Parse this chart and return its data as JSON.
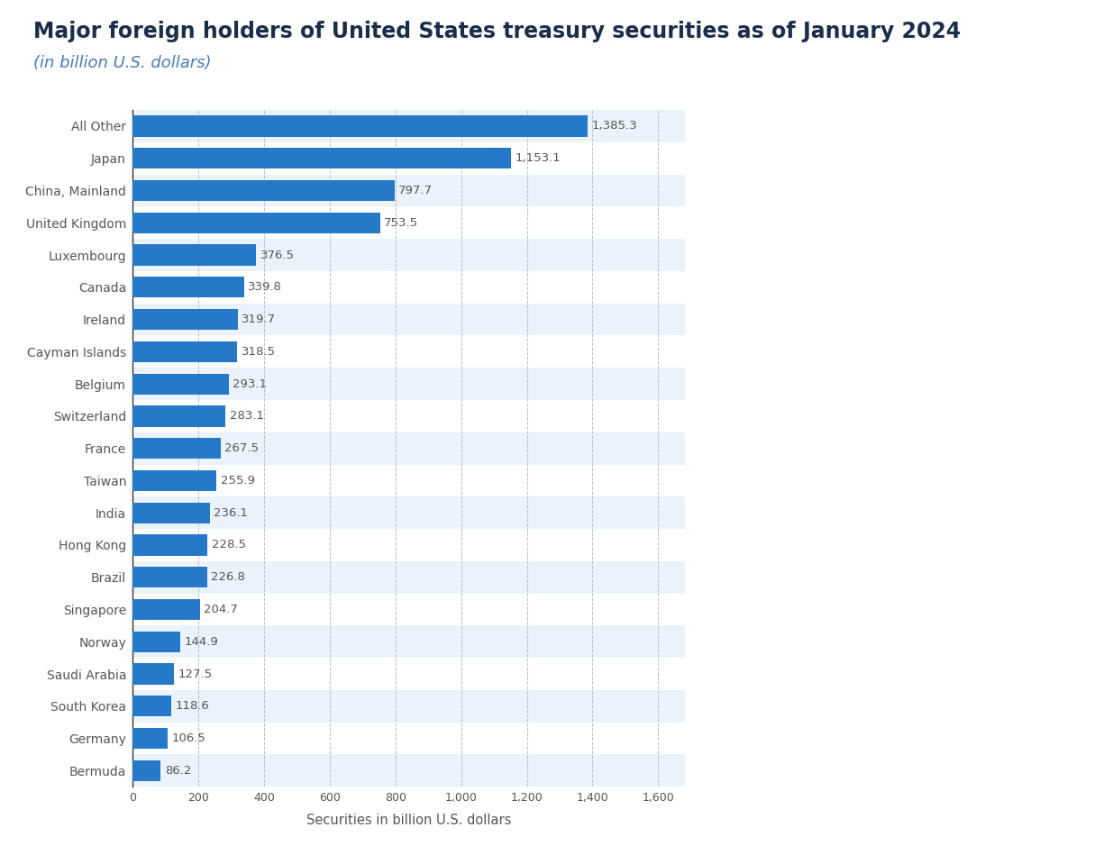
{
  "title": "Major foreign holders of United States treasury securities as of January 2024",
  "subtitle": "(in billion U.S. dollars)",
  "xlabel": "Securities in billion U.S. dollars",
  "categories": [
    "Bermuda",
    "Germany",
    "South Korea",
    "Saudi Arabia",
    "Norway",
    "Singapore",
    "Brazil",
    "Hong Kong",
    "India",
    "Taiwan",
    "France",
    "Switzerland",
    "Belgium",
    "Cayman Islands",
    "Ireland",
    "Canada",
    "Luxembourg",
    "United Kingdom",
    "China, Mainland",
    "Japan",
    "All Other"
  ],
  "values": [
    86.2,
    106.5,
    118.6,
    127.5,
    144.9,
    204.7,
    226.8,
    228.5,
    236.1,
    255.9,
    267.5,
    283.1,
    293.1,
    318.5,
    319.7,
    339.8,
    376.5,
    753.5,
    797.7,
    1153.1,
    1385.3
  ],
  "bar_color": "#2678c8",
  "title_color": "#1a2e4a",
  "subtitle_color": "#4a7ab5",
  "label_color": "#555555",
  "value_color": "#555555",
  "background_color": "#f0f0f0",
  "plot_background_odd": "#ffffff",
  "plot_background_even": "#eaf2fb",
  "grid_color": "#bbbbbb",
  "xlim": [
    0,
    1680
  ],
  "xticks": [
    0,
    200,
    400,
    600,
    800,
    1000,
    1200,
    1400,
    1600
  ],
  "title_fontsize": 17,
  "subtitle_fontsize": 13,
  "xlabel_fontsize": 10.5,
  "label_fontsize": 10,
  "value_fontsize": 9.5
}
